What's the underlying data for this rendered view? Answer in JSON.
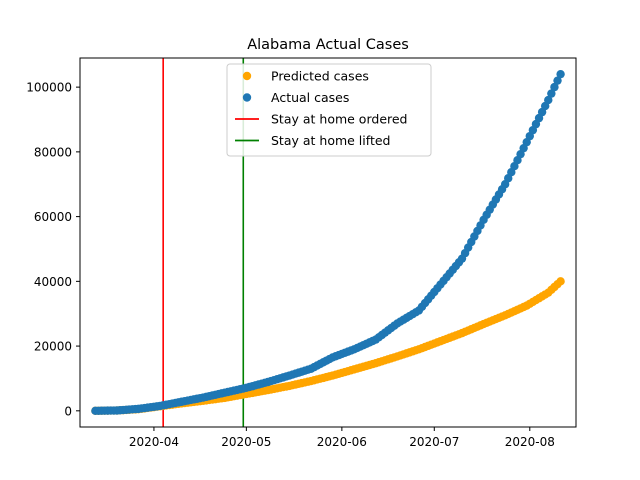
{
  "chart_data": {
    "type": "scatter",
    "title": "Alabama Actual Cases",
    "xlabel": "",
    "ylabel": "",
    "x_start": "2020-03-13",
    "x_end": "2020-08-11",
    "xlim": [
      "2020-03-08",
      "2020-08-16"
    ],
    "ylim": [
      -5000,
      109000
    ],
    "xticks": [
      "2020-04",
      "2020-05",
      "2020-06",
      "2020-07",
      "2020-08"
    ],
    "yticks": [
      0,
      20000,
      40000,
      60000,
      80000,
      100000
    ],
    "legend_position": "upper-center",
    "grid": false,
    "series": [
      {
        "name": "Predicted cases",
        "kind": "points",
        "color": "#ffa500",
        "points": [
          {
            "x": "2020-03-13",
            "y": 0
          },
          {
            "x": "2020-03-20",
            "y": 100
          },
          {
            "x": "2020-03-27",
            "y": 500
          },
          {
            "x": "2020-04-03",
            "y": 1400
          },
          {
            "x": "2020-04-10",
            "y": 2300
          },
          {
            "x": "2020-04-17",
            "y": 3100
          },
          {
            "x": "2020-04-24",
            "y": 4000
          },
          {
            "x": "2020-05-01",
            "y": 5200
          },
          {
            "x": "2020-05-08",
            "y": 6400
          },
          {
            "x": "2020-05-15",
            "y": 7700
          },
          {
            "x": "2020-05-22",
            "y": 9200
          },
          {
            "x": "2020-05-29",
            "y": 10900
          },
          {
            "x": "2020-06-05",
            "y": 12800
          },
          {
            "x": "2020-06-12",
            "y": 14700
          },
          {
            "x": "2020-06-19",
            "y": 16800
          },
          {
            "x": "2020-06-26",
            "y": 19000
          },
          {
            "x": "2020-07-03",
            "y": 21500
          },
          {
            "x": "2020-07-10",
            "y": 24000
          },
          {
            "x": "2020-07-17",
            "y": 26800
          },
          {
            "x": "2020-07-24",
            "y": 29500
          },
          {
            "x": "2020-07-31",
            "y": 32500
          },
          {
            "x": "2020-08-07",
            "y": 36500
          },
          {
            "x": "2020-08-11",
            "y": 40000
          }
        ]
      },
      {
        "name": "Actual cases",
        "kind": "points",
        "color": "#1f77b4",
        "points": [
          {
            "x": "2020-03-13",
            "y": 0
          },
          {
            "x": "2020-03-20",
            "y": 100
          },
          {
            "x": "2020-03-27",
            "y": 600
          },
          {
            "x": "2020-04-03",
            "y": 1500
          },
          {
            "x": "2020-04-10",
            "y": 2800
          },
          {
            "x": "2020-04-17",
            "y": 4100
          },
          {
            "x": "2020-04-24",
            "y": 5600
          },
          {
            "x": "2020-05-01",
            "y": 7100
          },
          {
            "x": "2020-05-08",
            "y": 8900
          },
          {
            "x": "2020-05-15",
            "y": 10900
          },
          {
            "x": "2020-05-22",
            "y": 13000
          },
          {
            "x": "2020-05-29",
            "y": 16500
          },
          {
            "x": "2020-06-05",
            "y": 19000
          },
          {
            "x": "2020-06-12",
            "y": 22000
          },
          {
            "x": "2020-06-19",
            "y": 27000
          },
          {
            "x": "2020-06-26",
            "y": 31000
          },
          {
            "x": "2020-07-03",
            "y": 39000
          },
          {
            "x": "2020-07-10",
            "y": 47000
          },
          {
            "x": "2020-07-17",
            "y": 59000
          },
          {
            "x": "2020-07-24",
            "y": 70000
          },
          {
            "x": "2020-07-31",
            "y": 83000
          },
          {
            "x": "2020-08-07",
            "y": 96000
          },
          {
            "x": "2020-08-11",
            "y": 104000
          }
        ]
      },
      {
        "name": "Stay at home ordered",
        "kind": "vline",
        "color": "#ff0000",
        "x": "2020-04-04"
      },
      {
        "name": "Stay at home lifted",
        "kind": "vline",
        "color": "#008000",
        "x": "2020-04-30"
      }
    ]
  }
}
